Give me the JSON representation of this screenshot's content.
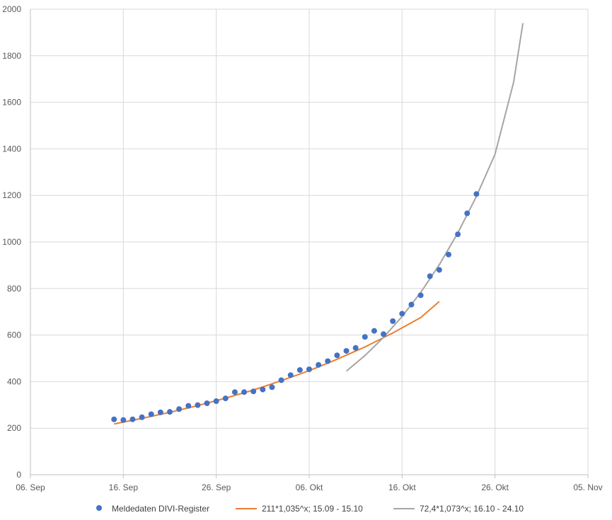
{
  "chart_data": {
    "type": "scatter",
    "title": "",
    "xlabel": "",
    "ylabel": "",
    "xlim": [
      "2020-09-06",
      "2020-11-05"
    ],
    "ylim": [
      0,
      2000
    ],
    "grid": true,
    "legend_position": "bottom",
    "x_ticks": [
      {
        "date": "2020-09-06",
        "label": "06. Sep"
      },
      {
        "date": "2020-09-16",
        "label": "16. Sep"
      },
      {
        "date": "2020-09-26",
        "label": "26. Sep"
      },
      {
        "date": "2020-10-06",
        "label": "06. Okt"
      },
      {
        "date": "2020-10-16",
        "label": "16. Okt"
      },
      {
        "date": "2020-10-26",
        "label": "26. Okt"
      },
      {
        "date": "2020-11-05",
        "label": "05. Nov"
      }
    ],
    "y_ticks": [
      0,
      200,
      400,
      600,
      800,
      1000,
      1200,
      1400,
      1600,
      1800,
      2000
    ],
    "series": [
      {
        "name": "Meldedaten DIVI-Register",
        "kind": "points",
        "color": "#4472C4",
        "x": [
          "2020-09-15",
          "2020-09-16",
          "2020-09-17",
          "2020-09-18",
          "2020-09-19",
          "2020-09-20",
          "2020-09-21",
          "2020-09-22",
          "2020-09-23",
          "2020-09-24",
          "2020-09-25",
          "2020-09-26",
          "2020-09-27",
          "2020-09-28",
          "2020-09-29",
          "2020-09-30",
          "2020-10-01",
          "2020-10-02",
          "2020-10-03",
          "2020-10-04",
          "2020-10-05",
          "2020-10-06",
          "2020-10-07",
          "2020-10-08",
          "2020-10-09",
          "2020-10-10",
          "2020-10-11",
          "2020-10-12",
          "2020-10-13",
          "2020-10-14",
          "2020-10-15",
          "2020-10-16",
          "2020-10-17",
          "2020-10-18",
          "2020-10-19",
          "2020-10-20",
          "2020-10-21",
          "2020-10-22",
          "2020-10-23",
          "2020-10-24"
        ],
        "y": [
          238,
          235,
          238,
          247,
          260,
          268,
          270,
          282,
          296,
          299,
          307,
          316,
          328,
          355,
          355,
          358,
          366,
          376,
          406,
          428,
          450,
          453,
          472,
          488,
          513,
          532,
          545,
          592,
          618,
          604,
          660,
          692,
          731,
          771,
          853,
          880,
          946,
          1033,
          1123,
          1206
        ]
      },
      {
        "name": "211*1,035^x; 15.09 - 15.10",
        "kind": "line",
        "color": "#ED7D31",
        "x": [
          "2020-09-15",
          "2020-09-18",
          "2020-09-21",
          "2020-09-24",
          "2020-09-27",
          "2020-09-30",
          "2020-10-03",
          "2020-10-06",
          "2020-10-09",
          "2020-10-12",
          "2020-10-15",
          "2020-10-18",
          "2020-10-20"
        ],
        "y": [
          218,
          242,
          268,
          297,
          329,
          364,
          404,
          447,
          496,
          549,
          609,
          675,
          744
        ]
      },
      {
        "name": "72,4*1,073^x; 16.10 - 24.10",
        "kind": "line",
        "color": "#A5A5A5",
        "x": [
          "2020-10-10",
          "2020-10-12",
          "2020-10-14",
          "2020-10-16",
          "2020-10-18",
          "2020-10-20",
          "2020-10-22",
          "2020-10-24",
          "2020-10-26",
          "2020-10-28",
          "2020-10-29"
        ],
        "y": [
          445,
          512,
          590,
          680,
          783,
          902,
          1039,
          1196,
          1377,
          1686,
          1940
        ]
      }
    ]
  }
}
